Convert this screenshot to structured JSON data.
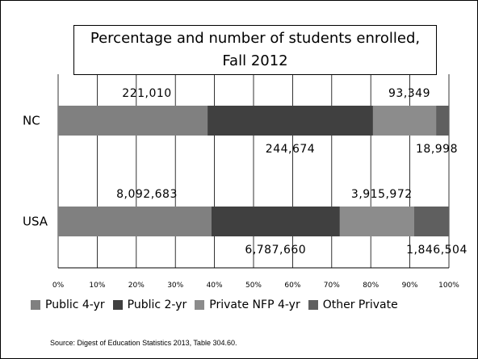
{
  "chart_data": {
    "type": "bar",
    "orientation": "horizontal",
    "stacked": true,
    "normalized": true,
    "title_line1": "Percentage and number of students enrolled,",
    "title_line2": "Fall 2012",
    "categories": [
      "NC",
      "USA"
    ],
    "series": [
      {
        "name": "Public 4-yr",
        "color": "#808080",
        "values": [
          221010,
          8092683
        ],
        "labels": [
          "221,010",
          "8,092,683"
        ]
      },
      {
        "name": "Public 2-yr",
        "color": "#404040",
        "values": [
          244674,
          6787660
        ],
        "labels": [
          "244,674",
          "6,787,660"
        ]
      },
      {
        "name": "Private NFP 4-yr",
        "color": "#8c8c8c",
        "values": [
          93349,
          3915972
        ],
        "labels": [
          "93,349",
          "3,915,972"
        ]
      },
      {
        "name": "Other Private",
        "color": "#5f5f5f",
        "values": [
          18998,
          1846504
        ],
        "labels": [
          "18,998",
          "1,846,504"
        ]
      }
    ],
    "x_ticks": [
      "0%",
      "10%",
      "20%",
      "30%",
      "40%",
      "50%",
      "60%",
      "70%",
      "80%",
      "90%",
      "100%"
    ],
    "xlim": [
      0,
      100
    ],
    "grid": true,
    "legend_position": "bottom"
  },
  "source_text": "Source:  Digest of Education Statistics 2013, Table 304.60."
}
